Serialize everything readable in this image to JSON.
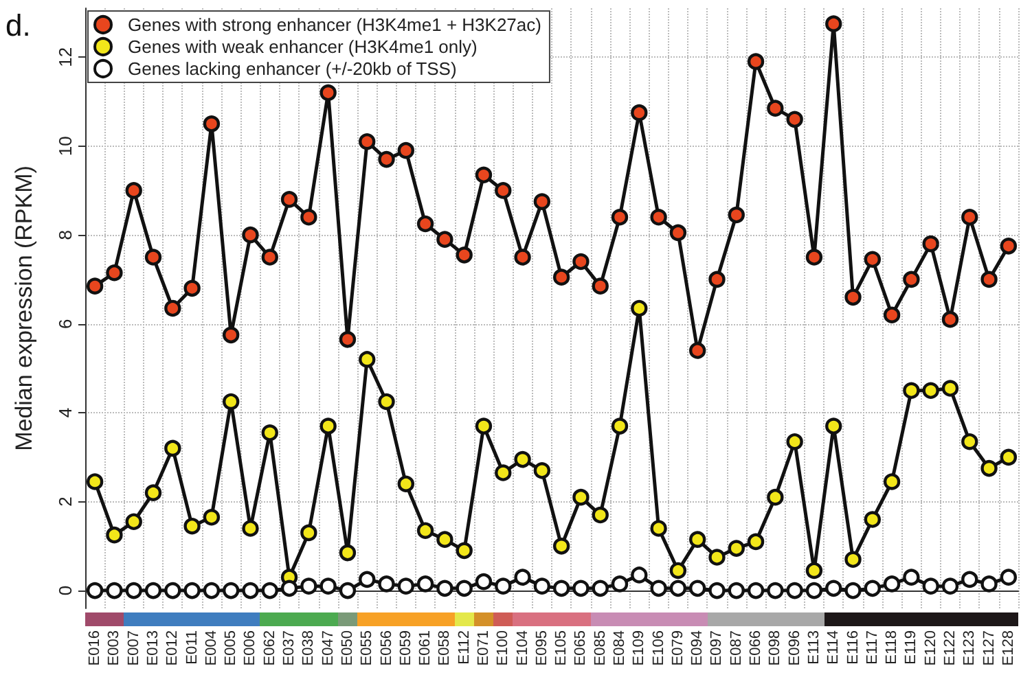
{
  "chart_data": {
    "type": "line",
    "annotations": [
      "d."
    ],
    "ylabel": "Median expression (RPKM)",
    "categories": [
      "E016",
      "E003",
      "E007",
      "E013",
      "E012",
      "E011",
      "E004",
      "E005",
      "E006",
      "E062",
      "E037",
      "E038",
      "E047",
      "E050",
      "E055",
      "E056",
      "E059",
      "E061",
      "E058",
      "E112",
      "E071",
      "E100",
      "E104",
      "E095",
      "E105",
      "E065",
      "E085",
      "E084",
      "E109",
      "E106",
      "E079",
      "E094",
      "E097",
      "E087",
      "E066",
      "E098",
      "E096",
      "E113",
      "E114",
      "E116",
      "E117",
      "E118",
      "E119",
      "E120",
      "E122",
      "E123",
      "E127",
      "E128"
    ],
    "series": [
      {
        "name": "Genes with strong enhancer (H3K4me1 + H3K27ac)",
        "color": "#e8461e",
        "values": [
          6.85,
          7.15,
          9.0,
          7.5,
          6.35,
          6.8,
          10.5,
          5.75,
          8.0,
          7.5,
          8.8,
          8.4,
          11.2,
          5.65,
          10.1,
          9.7,
          9.9,
          8.25,
          7.9,
          7.55,
          9.35,
          9.0,
          7.5,
          8.75,
          7.05,
          7.4,
          6.85,
          8.4,
          10.75,
          8.4,
          8.05,
          5.4,
          7.0,
          8.45,
          11.9,
          10.85,
          10.6,
          7.5,
          12.75,
          6.6,
          7.45,
          6.2,
          7.0,
          7.8,
          6.1,
          8.4,
          7.0,
          7.75
        ]
      },
      {
        "name": "Genes with weak enhancer (H3K4me1 only)",
        "color": "#f2e61a",
        "values": [
          2.45,
          1.25,
          1.55,
          2.2,
          3.2,
          1.45,
          1.65,
          4.25,
          1.4,
          3.55,
          0.3,
          1.3,
          3.7,
          0.85,
          5.2,
          4.25,
          2.4,
          1.35,
          1.15,
          0.9,
          3.7,
          2.65,
          2.95,
          2.7,
          1.0,
          2.1,
          1.7,
          3.7,
          6.35,
          1.4,
          0.45,
          1.15,
          0.75,
          0.95,
          1.1,
          2.1,
          3.35,
          0.45,
          3.7,
          0.7,
          1.6,
          2.45,
          4.5,
          4.5,
          4.55,
          3.35,
          2.75,
          3.0
        ]
      },
      {
        "name": "Genes lacking enhancer (+/-20kb of TSS)",
        "color": "#ffffff",
        "values": [
          0,
          0,
          0,
          0,
          0,
          0,
          0,
          0,
          0,
          0,
          0.05,
          0.1,
          0.1,
          0,
          0.25,
          0.15,
          0.1,
          0.15,
          0.05,
          0.05,
          0.2,
          0.1,
          0.3,
          0.1,
          0.05,
          0.05,
          0.05,
          0.15,
          0.35,
          0.05,
          0.05,
          0.05,
          0,
          0,
          0,
          0,
          0,
          0,
          0.05,
          0,
          0.05,
          0.15,
          0.3,
          0.1,
          0.1,
          0.25,
          0.15,
          0.3
        ]
      }
    ],
    "ylim": [
      -0.4,
      13.1
    ],
    "yticks": [
      0,
      2,
      4,
      6,
      8,
      10,
      12
    ],
    "grid": true,
    "legend": "top left",
    "marker": "circle",
    "line_style": "solid"
  }
}
